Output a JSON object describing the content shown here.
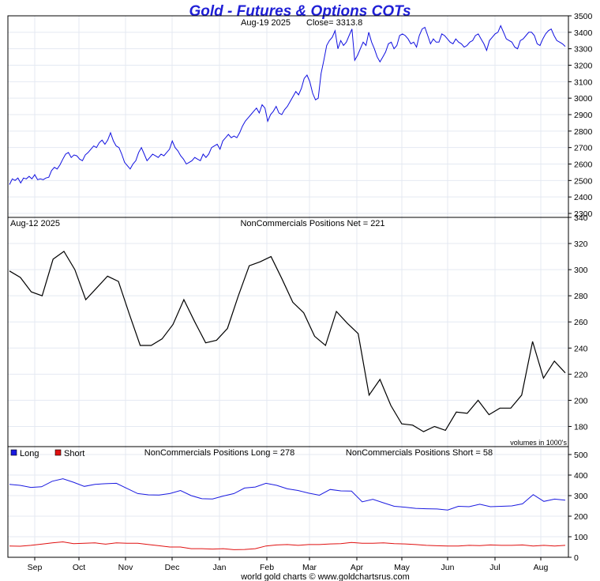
{
  "title": "Gold - Futures & Options COTs",
  "footer": "world gold charts © www.goldchartsrus.com",
  "colors": {
    "price": "#1010e0",
    "net": "#000000",
    "long": "#1a1ae0",
    "short": "#e01010",
    "title": "#1f1fd6"
  },
  "months": [
    "Sep",
    "Oct",
    "Nov",
    "Dec",
    "Jan",
    "Feb",
    "Mar",
    "Apr",
    "May",
    "Jun",
    "Jul",
    "Aug"
  ],
  "chart_data": [
    {
      "type": "line",
      "panel": "price",
      "date_label": "Aug-19  2025",
      "header": "Close= 3313.8",
      "ylim": [
        2300,
        3500
      ],
      "yticks": [
        2300,
        2400,
        2500,
        2600,
        2700,
        2800,
        2900,
        3000,
        3100,
        3200,
        3300,
        3400,
        3500
      ],
      "series": [
        {
          "values": [
            2475,
            2510,
            2500,
            2515,
            2485,
            2515,
            2510,
            2525,
            2510,
            2535,
            2505,
            2510,
            2505,
            2515,
            2520,
            2560,
            2580,
            2570,
            2595,
            2630,
            2660,
            2670,
            2640,
            2655,
            2650,
            2630,
            2620,
            2655,
            2670,
            2690,
            2710,
            2700,
            2730,
            2745,
            2720,
            2745,
            2790,
            2740,
            2710,
            2700,
            2660,
            2610,
            2590,
            2570,
            2600,
            2620,
            2670,
            2700,
            2660,
            2620,
            2640,
            2660,
            2650,
            2640,
            2660,
            2650,
            2670,
            2690,
            2740,
            2700,
            2680,
            2650,
            2630,
            2600,
            2610,
            2620,
            2640,
            2630,
            2620,
            2660,
            2640,
            2660,
            2700,
            2710,
            2720,
            2690,
            2740,
            2760,
            2780,
            2760,
            2770,
            2760,
            2790,
            2830,
            2860,
            2880,
            2900,
            2920,
            2940,
            2910,
            2960,
            2940,
            2860,
            2900,
            2920,
            2950,
            2910,
            2900,
            2930,
            2950,
            2980,
            3010,
            3040,
            3020,
            3060,
            3120,
            3140,
            3100,
            3030,
            2990,
            3000,
            3150,
            3230,
            3320,
            3350,
            3370,
            3410,
            3300,
            3350,
            3320,
            3340,
            3380,
            3420,
            3230,
            3260,
            3300,
            3340,
            3320,
            3400,
            3340,
            3300,
            3250,
            3220,
            3250,
            3280,
            3330,
            3340,
            3300,
            3320,
            3380,
            3390,
            3380,
            3360,
            3330,
            3340,
            3310,
            3380,
            3420,
            3430,
            3380,
            3330,
            3360,
            3340,
            3340,
            3390,
            3380,
            3360,
            3340,
            3330,
            3360,
            3340,
            3330,
            3310,
            3320,
            3340,
            3350,
            3380,
            3390,
            3360,
            3330,
            3290,
            3350,
            3370,
            3390,
            3400,
            3440,
            3400,
            3360,
            3350,
            3340,
            3310,
            3300,
            3350,
            3360,
            3380,
            3400,
            3400,
            3380,
            3330,
            3320,
            3360,
            3390,
            3410,
            3420,
            3380,
            3350,
            3340,
            3330,
            3314
          ]
        }
      ]
    },
    {
      "type": "line",
      "panel": "net",
      "date_label": "Aug-12  2025",
      "header": "NonCommercials Positions Net = 221",
      "ylim": [
        170,
        340
      ],
      "yticks": [
        180,
        200,
        220,
        240,
        260,
        280,
        300,
        320,
        340
      ],
      "note": "volumes in 1000's",
      "series": [
        {
          "values": [
            299,
            294,
            283,
            280,
            308,
            314,
            300,
            277,
            286,
            295,
            291,
            266,
            242,
            242,
            247,
            258,
            277,
            260,
            244,
            246,
            255,
            280,
            303,
            306,
            310,
            293,
            275,
            267,
            249,
            242,
            268,
            259,
            251,
            204,
            216,
            196,
            182,
            181,
            176,
            180,
            177,
            191,
            190,
            200,
            189,
            194,
            194,
            204,
            245,
            217,
            230,
            221
          ]
        }
      ]
    },
    {
      "type": "line",
      "panel": "positions",
      "legend": [
        "Long",
        "Short"
      ],
      "header_long": "NonCommercials Positions Long = 278",
      "header_short": "NonCommercials Positions Short = 58",
      "ylim": [
        0,
        500
      ],
      "yticks": [
        0,
        100,
        200,
        300,
        400,
        500
      ],
      "series": [
        {
          "name": "Long",
          "values": [
            355,
            350,
            340,
            343,
            370,
            382,
            365,
            345,
            355,
            358,
            360,
            335,
            310,
            304,
            303,
            310,
            325,
            300,
            285,
            284,
            298,
            310,
            337,
            342,
            360,
            350,
            333,
            325,
            312,
            302,
            330,
            323,
            322,
            270,
            282,
            265,
            248,
            244,
            238,
            236,
            235,
            230,
            248,
            246,
            258,
            246,
            248,
            250,
            260,
            305,
            272,
            283,
            278
          ]
        },
        {
          "name": "Short",
          "values": [
            55,
            54,
            58,
            64,
            70,
            75,
            66,
            68,
            70,
            64,
            70,
            68,
            68,
            62,
            56,
            50,
            50,
            42,
            42,
            40,
            42,
            37,
            38,
            42,
            55,
            60,
            62,
            58,
            62,
            62,
            65,
            66,
            72,
            68,
            68,
            70,
            66,
            65,
            62,
            58,
            56,
            55,
            55,
            58,
            57,
            60,
            58,
            58,
            60,
            55,
            58,
            55,
            58
          ]
        }
      ]
    }
  ]
}
